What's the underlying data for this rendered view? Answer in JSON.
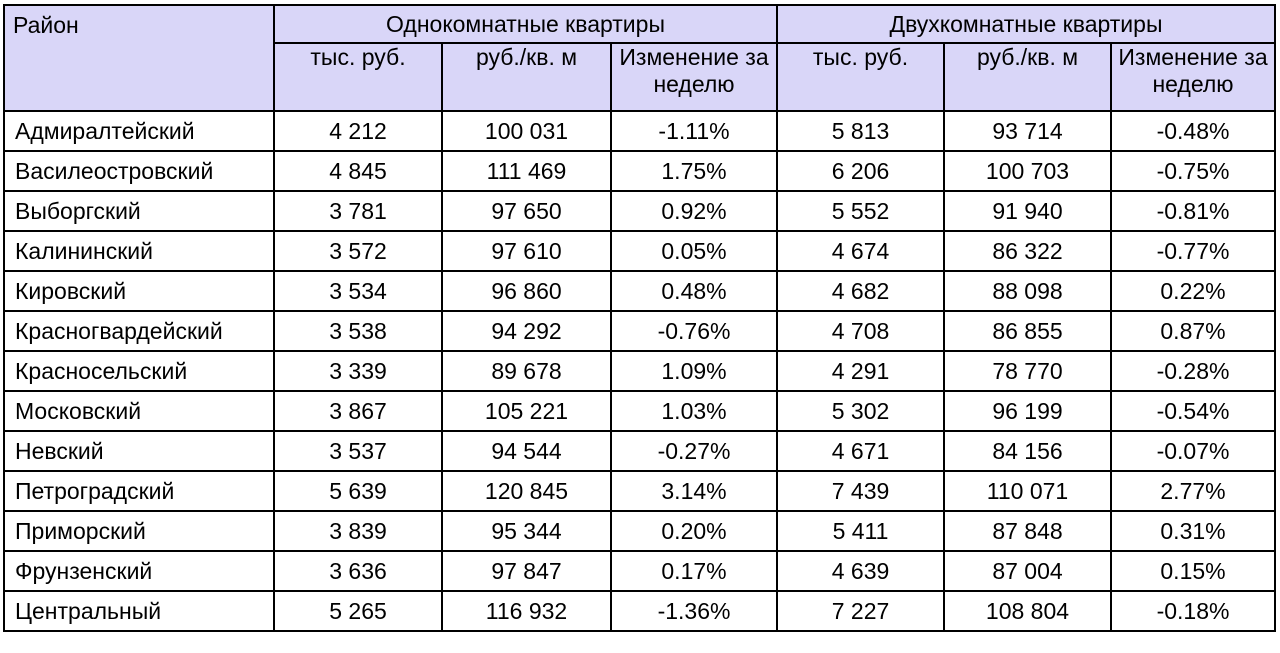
{
  "table": {
    "district_header": "Район",
    "groups": [
      {
        "label": "Однокомнатные квартиры"
      },
      {
        "label": "Двухкомнатные квартиры"
      }
    ],
    "subheaders": [
      "тыс. руб.",
      "руб./кв. м",
      "Изменение за неделю",
      "тыс. руб.",
      "руб./кв. м",
      "Изменение за неделю"
    ],
    "rows": [
      [
        "Адмиралтейский",
        "4 212",
        "100 031",
        "-1.11%",
        "5 813",
        "93 714",
        "-0.48%"
      ],
      [
        "Василеостровский",
        "4 845",
        "111 469",
        "1.75%",
        "6 206",
        "100 703",
        "-0.75%"
      ],
      [
        "Выборгский",
        "3 781",
        "97 650",
        "0.92%",
        "5 552",
        "91 940",
        "-0.81%"
      ],
      [
        "Калининский",
        "3 572",
        "97 610",
        "0.05%",
        "4 674",
        "86 322",
        "-0.77%"
      ],
      [
        "Кировский",
        "3 534",
        "96 860",
        "0.48%",
        "4 682",
        "88 098",
        "0.22%"
      ],
      [
        "Красногвардейский",
        "3 538",
        "94 292",
        "-0.76%",
        "4 708",
        "86 855",
        "0.87%"
      ],
      [
        "Красносельский",
        "3 339",
        "89 678",
        "1.09%",
        "4 291",
        "78 770",
        "-0.28%"
      ],
      [
        "Московский",
        "3 867",
        "105 221",
        "1.03%",
        "5 302",
        "96 199",
        "-0.54%"
      ],
      [
        "Невский",
        "3 537",
        "94 544",
        "-0.27%",
        "4 671",
        "84 156",
        "-0.07%"
      ],
      [
        "Петроградский",
        "5 639",
        "120 845",
        "3.14%",
        "7 439",
        "110 071",
        "2.77%"
      ],
      [
        "Приморский",
        "3 839",
        "95 344",
        "0.20%",
        "5 411",
        "87 848",
        "0.31%"
      ],
      [
        "Фрунзенский",
        "3 636",
        "97 847",
        "0.17%",
        "4 639",
        "87 004",
        "0.15%"
      ],
      [
        "Центральный",
        "5 265",
        "116 932",
        "-1.36%",
        "7 227",
        "108 804",
        "-0.18%"
      ]
    ]
  },
  "colors": {
    "header_background": "#d9d6f8",
    "border": "#000000",
    "text": "#000000"
  }
}
